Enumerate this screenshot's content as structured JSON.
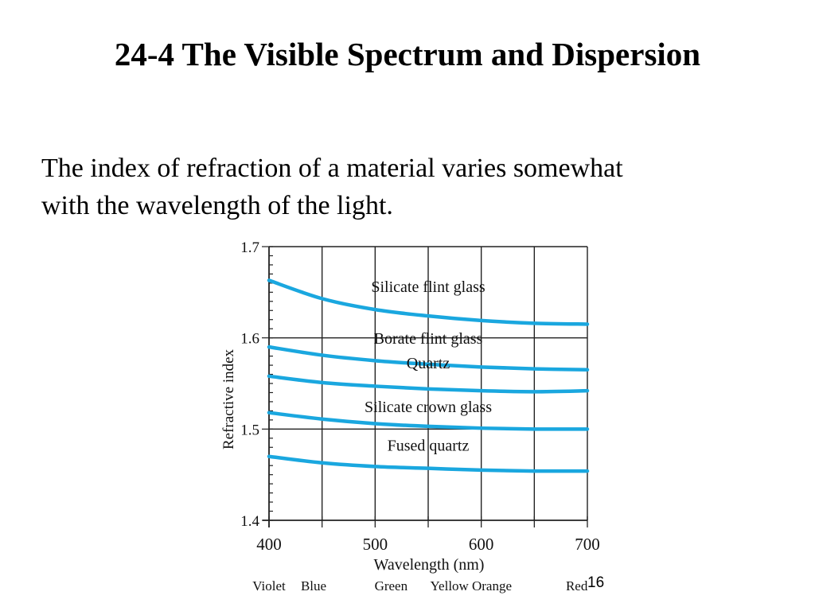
{
  "slide": {
    "title": "24-4 The Visible Spectrum and Dispersion",
    "body_line_1": "The index of refraction of a material varies somewhat",
    "body_line_2": "with the wavelength of the light.",
    "page_number": "16"
  },
  "chart_data": {
    "type": "line",
    "title": "",
    "xlabel": "Wavelength (nm)",
    "ylabel": "Refractive index",
    "xlim": [
      400,
      700
    ],
    "ylim": [
      1.4,
      1.7
    ],
    "x_ticks": [
      "400",
      "500",
      "600",
      "700"
    ],
    "y_ticks": [
      "1.4",
      "1.5",
      "1.6",
      "1.7"
    ],
    "grid": "vertical lines every 50 nm; horizontal lines at 1.5 and 1.6",
    "line_color": "#1aa7df",
    "color_labels": [
      {
        "label": "Violet",
        "x": 400
      },
      {
        "label": "Blue",
        "x": 442
      },
      {
        "label": "Green",
        "x": 515
      },
      {
        "label": "Yellow",
        "x": 570
      },
      {
        "label": "Orange",
        "x": 610
      },
      {
        "label": "Red",
        "x": 690
      }
    ],
    "series": [
      {
        "name": "Silicate flint glass",
        "points": [
          [
            400,
            1.663
          ],
          [
            450,
            1.643
          ],
          [
            500,
            1.631
          ],
          [
            550,
            1.624
          ],
          [
            600,
            1.619
          ],
          [
            650,
            1.616
          ],
          [
            700,
            1.615
          ]
        ]
      },
      {
        "name": "Borate flint glass",
        "points": [
          [
            400,
            1.59
          ],
          [
            450,
            1.581
          ],
          [
            500,
            1.575
          ],
          [
            550,
            1.571
          ],
          [
            600,
            1.568
          ],
          [
            650,
            1.566
          ],
          [
            700,
            1.565
          ]
        ]
      },
      {
        "name": "Quartz",
        "points": [
          [
            400,
            1.558
          ],
          [
            450,
            1.551
          ],
          [
            500,
            1.547
          ],
          [
            550,
            1.544
          ],
          [
            600,
            1.542
          ],
          [
            650,
            1.541
          ],
          [
            700,
            1.542
          ]
        ]
      },
      {
        "name": "Silicate crown glass",
        "points": [
          [
            400,
            1.518
          ],
          [
            450,
            1.511
          ],
          [
            500,
            1.506
          ],
          [
            550,
            1.503
          ],
          [
            600,
            1.501
          ],
          [
            650,
            1.5
          ],
          [
            700,
            1.5
          ]
        ]
      },
      {
        "name": "Fused quartz",
        "points": [
          [
            400,
            1.47
          ],
          [
            450,
            1.463
          ],
          [
            500,
            1.459
          ],
          [
            550,
            1.457
          ],
          [
            600,
            1.455
          ],
          [
            650,
            1.454
          ],
          [
            700,
            1.454
          ]
        ]
      }
    ]
  }
}
